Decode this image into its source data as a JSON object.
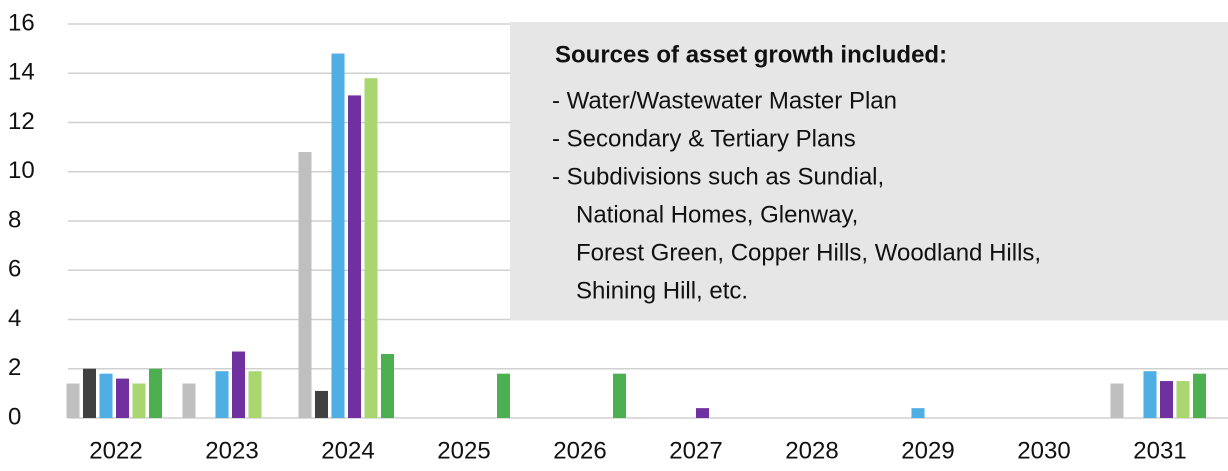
{
  "chart_data": {
    "type": "bar",
    "categories": [
      "2022",
      "2023",
      "2024",
      "2025",
      "2026",
      "2027",
      "2028",
      "2029",
      "2030",
      "2031"
    ],
    "series": [
      {
        "color": "#bfbfbf",
        "values": [
          1.4,
          1.4,
          10.8,
          0,
          0,
          0,
          0,
          0,
          0,
          1.4
        ]
      },
      {
        "color": "#404040",
        "values": [
          2.0,
          0,
          1.1,
          0,
          0,
          0,
          0,
          0,
          0,
          0
        ]
      },
      {
        "color": "#4faee3",
        "values": [
          1.8,
          1.9,
          14.8,
          0,
          0,
          0,
          0,
          0.4,
          0,
          1.9
        ]
      },
      {
        "color": "#7030a0",
        "values": [
          1.6,
          2.7,
          13.1,
          0,
          0,
          0.4,
          0,
          0,
          0,
          1.5
        ]
      },
      {
        "color": "#a9d66e",
        "values": [
          1.4,
          1.9,
          13.8,
          0,
          0,
          0,
          0,
          0,
          0,
          1.5
        ]
      },
      {
        "color": "#4caf50",
        "values": [
          2.0,
          0,
          2.6,
          1.8,
          1.8,
          0,
          0,
          0,
          0,
          1.8
        ]
      }
    ],
    "ylim": [
      0,
      16
    ],
    "yticks": [
      0,
      2,
      4,
      6,
      8,
      10,
      12,
      14,
      16
    ],
    "grid": true,
    "annotation": {
      "title": "Sources of asset growth included:",
      "lines": [
        "- Water/Wastewater Master Plan",
        "- Secondary & Tertiary Plans",
        "- Subdivisions such as Sundial,",
        "National Homes, Glenway,",
        "Forest Green, Copper Hills, Woodland Hills,",
        "Shining Hill, etc."
      ]
    }
  }
}
